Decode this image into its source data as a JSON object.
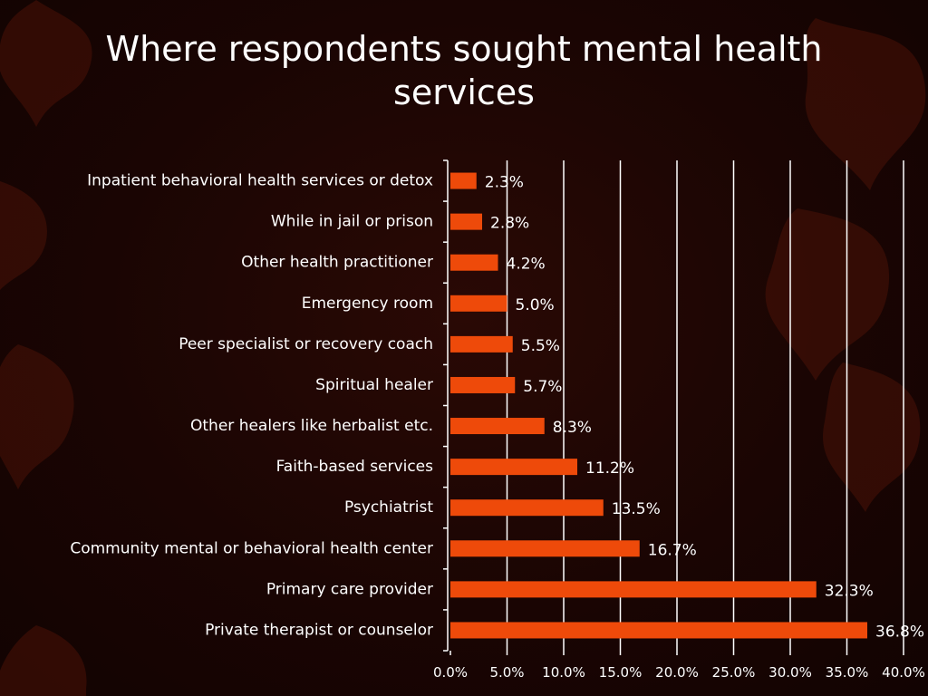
{
  "colors": {
    "bar": "#ee4a0a",
    "gridline": "#ffffff",
    "text": "#ffffff",
    "leaf": "#4a1208"
  },
  "chart_data": {
    "type": "bar",
    "orientation": "horizontal",
    "title": "Where respondents sought mental health services",
    "categories": [
      "Inpatient behavioral health services or detox",
      "While in jail or prison",
      "Other health practitioner",
      "Emergency room",
      "Peer specialist or recovery coach",
      "Spiritual healer",
      "Other healers like herbalist etc.",
      "Faith-based services",
      "Psychiatrist",
      "Community mental or behavioral health center",
      "Primary care provider",
      "Private therapist or counselor"
    ],
    "values": [
      2.3,
      2.8,
      4.2,
      5.0,
      5.5,
      5.7,
      8.3,
      11.2,
      13.5,
      16.7,
      32.3,
      36.8
    ],
    "data_labels": [
      "2.3%",
      "2.8%",
      "4.2%",
      "5.0%",
      "5.5%",
      "5.7%",
      "8.3%",
      "11.2%",
      "13.5%",
      "16.7%",
      "32.3%",
      "36.8%"
    ],
    "xlim": [
      0,
      40
    ],
    "x_ticks": [
      0,
      5,
      10,
      15,
      20,
      25,
      30,
      35,
      40
    ],
    "x_tick_labels": [
      "0.0%",
      "5.0%",
      "10.0%",
      "15.0%",
      "20.0%",
      "25.0%",
      "30.0%",
      "35.0%",
      "40.0%"
    ],
    "xlabel": "",
    "ylabel": "",
    "grid": true,
    "legend": "none"
  }
}
